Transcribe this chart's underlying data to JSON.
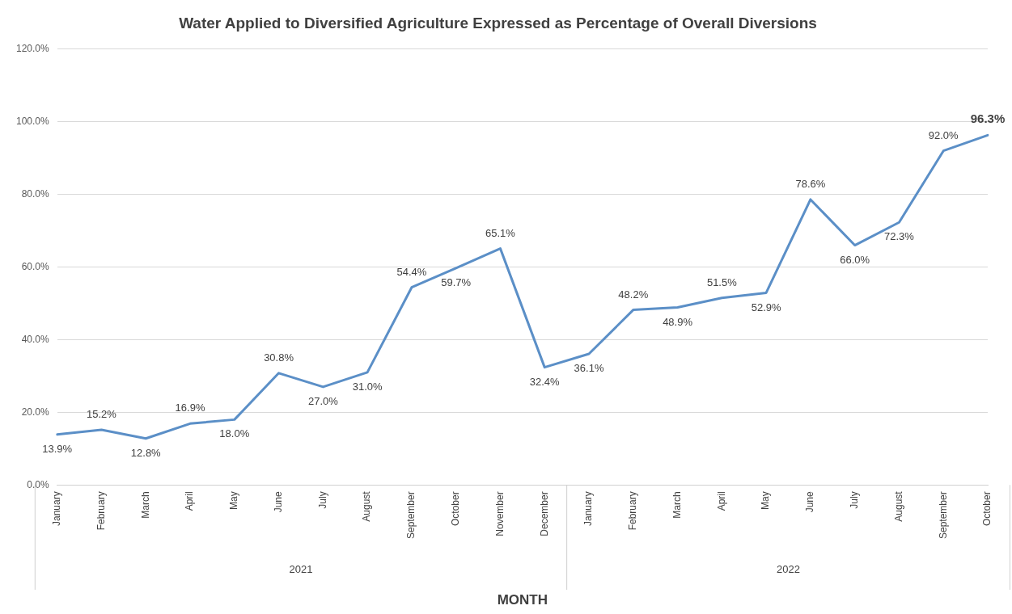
{
  "chart_data": {
    "type": "line",
    "title": "Water Applied to Diversified Agriculture Expressed as Percentage of Overall Diversions",
    "xlabel": "MONTH",
    "categories": [
      "January",
      "February",
      "March",
      "April",
      "May",
      "June",
      "July",
      "August",
      "September",
      "October",
      "November",
      "December",
      "January",
      "February",
      "March",
      "April",
      "May",
      "June",
      "July",
      "August",
      "September",
      "October"
    ],
    "series": [
      {
        "color": "#5b8fc7",
        "values": [
          13.9,
          15.2,
          12.8,
          16.9,
          18.0,
          30.8,
          27.0,
          31.0,
          54.4,
          59.7,
          65.1,
          32.4,
          36.1,
          48.2,
          48.9,
          51.5,
          52.9,
          78.6,
          66.0,
          72.3,
          92.0,
          96.3
        ],
        "value_labels": [
          "13.9%",
          "15.2%",
          "12.8%",
          "16.9%",
          "18.0%",
          "30.8%",
          "27.0%",
          "31.0%",
          "54.4%",
          "59.7%",
          "65.1%",
          "32.4%",
          "36.1%",
          "48.2%",
          "48.9%",
          "51.5%",
          "52.9%",
          "78.6%",
          "66.0%",
          "72.3%",
          "92.0%",
          "96.3%"
        ]
      }
    ],
    "annotations": [
      "2021",
      "2022"
    ],
    "ylim": [
      0,
      120
    ],
    "yticks": [
      {
        "value": 0,
        "label": "0.0%"
      },
      {
        "value": 20,
        "label": "20.0%"
      },
      {
        "value": 40,
        "label": "40.0%"
      },
      {
        "value": 60,
        "label": "60.0%"
      },
      {
        "value": 80,
        "label": "80.0%"
      },
      {
        "value": 100,
        "label": "100.0%"
      },
      {
        "value": 120,
        "label": "120.0%"
      }
    ],
    "grid": "y",
    "legend": false,
    "marker": "none",
    "line_style": "solid"
  }
}
